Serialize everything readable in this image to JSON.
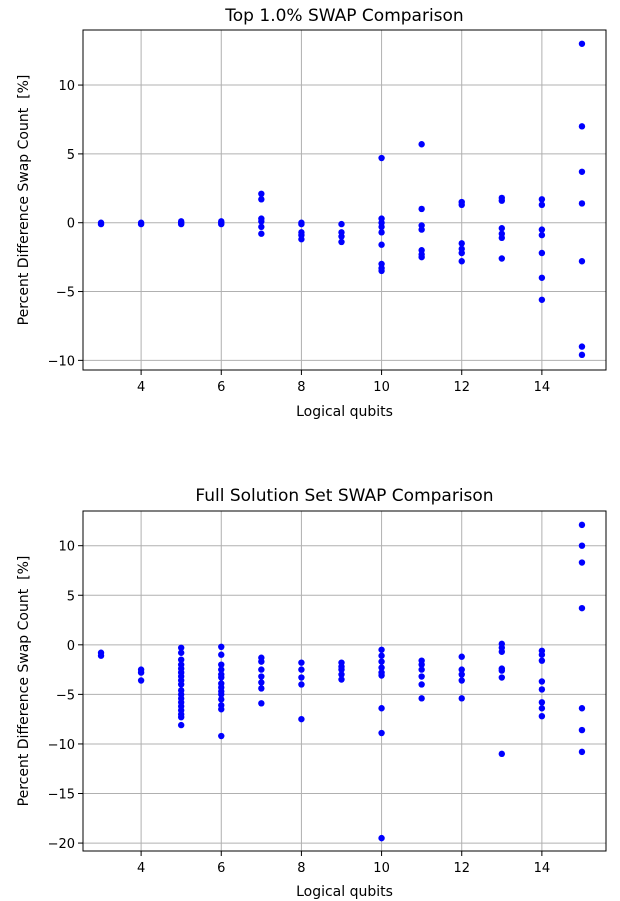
{
  "chart_data": [
    {
      "type": "scatter",
      "title": "Top 1.0% SWAP Comparison",
      "xlabel": "Logical qubits",
      "ylabel": "Percent Difference Swap Count  [%]",
      "xlim": [
        2.55,
        15.6
      ],
      "ylim": [
        -10.7,
        14.0
      ],
      "xticks": [
        4,
        6,
        8,
        10,
        12,
        14
      ],
      "yticks": [
        -10,
        -5,
        0,
        5,
        10
      ],
      "grid": true,
      "color": "#0000ff",
      "points": [
        [
          3,
          0.0
        ],
        [
          3,
          -0.1
        ],
        [
          4,
          0.0
        ],
        [
          4,
          -0.1
        ],
        [
          5,
          0.0
        ],
        [
          5,
          -0.1
        ],
        [
          5,
          0.1
        ],
        [
          6,
          0.0
        ],
        [
          6,
          -0.1
        ],
        [
          6,
          0.1
        ],
        [
          7,
          2.1
        ],
        [
          7,
          1.7
        ],
        [
          7,
          0.3
        ],
        [
          7,
          0.1
        ],
        [
          7,
          -0.3
        ],
        [
          7,
          -0.8
        ],
        [
          8,
          0.0
        ],
        [
          8,
          -0.1
        ],
        [
          8,
          -0.7
        ],
        [
          8,
          -0.9
        ],
        [
          8,
          -1.2
        ],
        [
          9,
          -0.1
        ],
        [
          9,
          -0.7
        ],
        [
          9,
          -1.0
        ],
        [
          9,
          -1.4
        ],
        [
          10,
          4.7
        ],
        [
          10,
          0.3
        ],
        [
          10,
          0.0
        ],
        [
          10,
          -0.3
        ],
        [
          10,
          -0.7
        ],
        [
          10,
          -1.6
        ],
        [
          10,
          -3.0
        ],
        [
          10,
          -3.3
        ],
        [
          10,
          -3.5
        ],
        [
          11,
          5.7
        ],
        [
          11,
          1.0
        ],
        [
          11,
          -0.2
        ],
        [
          11,
          -0.5
        ],
        [
          11,
          -2.0
        ],
        [
          11,
          -2.3
        ],
        [
          11,
          -2.5
        ],
        [
          12,
          1.5
        ],
        [
          12,
          1.3
        ],
        [
          12,
          -1.5
        ],
        [
          12,
          -1.9
        ],
        [
          12,
          -2.2
        ],
        [
          12,
          -2.8
        ],
        [
          13,
          1.8
        ],
        [
          13,
          1.6
        ],
        [
          13,
          -0.4
        ],
        [
          13,
          -0.8
        ],
        [
          13,
          -1.1
        ],
        [
          13,
          -2.6
        ],
        [
          14,
          1.7
        ],
        [
          14,
          1.3
        ],
        [
          14,
          -0.5
        ],
        [
          14,
          -0.9
        ],
        [
          14,
          -2.2
        ],
        [
          14,
          -4.0
        ],
        [
          14,
          -5.6
        ],
        [
          15,
          13.0
        ],
        [
          15,
          7.0
        ],
        [
          15,
          3.7
        ],
        [
          15,
          1.4
        ],
        [
          15,
          -2.8
        ],
        [
          15,
          -9.0
        ],
        [
          15,
          -9.6
        ]
      ]
    },
    {
      "type": "scatter",
      "title": "Full Solution Set SWAP Comparison",
      "xlabel": "Logical qubits",
      "ylabel": "Percent Difference Swap Count  [%]",
      "xlim": [
        2.55,
        15.6
      ],
      "ylim": [
        -20.8,
        13.5
      ],
      "xticks": [
        4,
        6,
        8,
        10,
        12,
        14
      ],
      "yticks": [
        -20,
        -15,
        -10,
        -5,
        0,
        5,
        10
      ],
      "grid": true,
      "color": "#0000ff",
      "points": [
        [
          3,
          -0.8
        ],
        [
          3,
          -1.1
        ],
        [
          4,
          -2.5
        ],
        [
          4,
          -2.8
        ],
        [
          4,
          -3.6
        ],
        [
          5,
          -0.3
        ],
        [
          5,
          -0.8
        ],
        [
          5,
          -1.5
        ],
        [
          5,
          -2.0
        ],
        [
          5,
          -2.4
        ],
        [
          5,
          -2.8
        ],
        [
          5,
          -3.2
        ],
        [
          5,
          -3.6
        ],
        [
          5,
          -4.0
        ],
        [
          5,
          -4.6
        ],
        [
          5,
          -5.0
        ],
        [
          5,
          -5.4
        ],
        [
          5,
          -5.8
        ],
        [
          5,
          -6.2
        ],
        [
          5,
          -6.6
        ],
        [
          5,
          -7.0
        ],
        [
          5,
          -7.3
        ],
        [
          5,
          -8.1
        ],
        [
          6,
          -0.2
        ],
        [
          6,
          -1.0
        ],
        [
          6,
          -2.0
        ],
        [
          6,
          -2.5
        ],
        [
          6,
          -3.0
        ],
        [
          6,
          -3.3
        ],
        [
          6,
          -3.9
        ],
        [
          6,
          -4.3
        ],
        [
          6,
          -4.7
        ],
        [
          6,
          -5.0
        ],
        [
          6,
          -5.5
        ],
        [
          6,
          -6.1
        ],
        [
          6,
          -6.5
        ],
        [
          6,
          -9.2
        ],
        [
          7,
          -1.3
        ],
        [
          7,
          -1.7
        ],
        [
          7,
          -2.5
        ],
        [
          7,
          -3.2
        ],
        [
          7,
          -3.8
        ],
        [
          7,
          -4.4
        ],
        [
          7,
          -5.9
        ],
        [
          8,
          -1.8
        ],
        [
          8,
          -2.5
        ],
        [
          8,
          -3.3
        ],
        [
          8,
          -4.0
        ],
        [
          8,
          -7.5
        ],
        [
          9,
          -1.8
        ],
        [
          9,
          -2.2
        ],
        [
          9,
          -2.5
        ],
        [
          9,
          -3.0
        ],
        [
          9,
          -3.5
        ],
        [
          10,
          -0.5
        ],
        [
          10,
          -1.1
        ],
        [
          10,
          -1.7
        ],
        [
          10,
          -2.3
        ],
        [
          10,
          -2.8
        ],
        [
          10,
          -3.1
        ],
        [
          10,
          -6.4
        ],
        [
          10,
          -8.9
        ],
        [
          10,
          -19.5
        ],
        [
          11,
          -1.6
        ],
        [
          11,
          -2.0
        ],
        [
          11,
          -2.5
        ],
        [
          11,
          -3.2
        ],
        [
          11,
          -4.0
        ],
        [
          11,
          -5.4
        ],
        [
          12,
          -1.2
        ],
        [
          12,
          -2.5
        ],
        [
          12,
          -3.0
        ],
        [
          12,
          -3.6
        ],
        [
          12,
          -5.4
        ],
        [
          13,
          0.1
        ],
        [
          13,
          -0.3
        ],
        [
          13,
          -0.7
        ],
        [
          13,
          -2.4
        ],
        [
          13,
          -2.6
        ],
        [
          13,
          -3.3
        ],
        [
          13,
          -11.0
        ],
        [
          14,
          -0.6
        ],
        [
          14,
          -1.0
        ],
        [
          14,
          -1.6
        ],
        [
          14,
          -3.7
        ],
        [
          14,
          -4.5
        ],
        [
          14,
          -5.8
        ],
        [
          14,
          -6.4
        ],
        [
          14,
          -7.2
        ],
        [
          15,
          12.1
        ],
        [
          15,
          10.0
        ],
        [
          15,
          8.3
        ],
        [
          15,
          3.7
        ],
        [
          15,
          -6.4
        ],
        [
          15,
          -8.6
        ],
        [
          15,
          -10.8
        ]
      ]
    }
  ]
}
